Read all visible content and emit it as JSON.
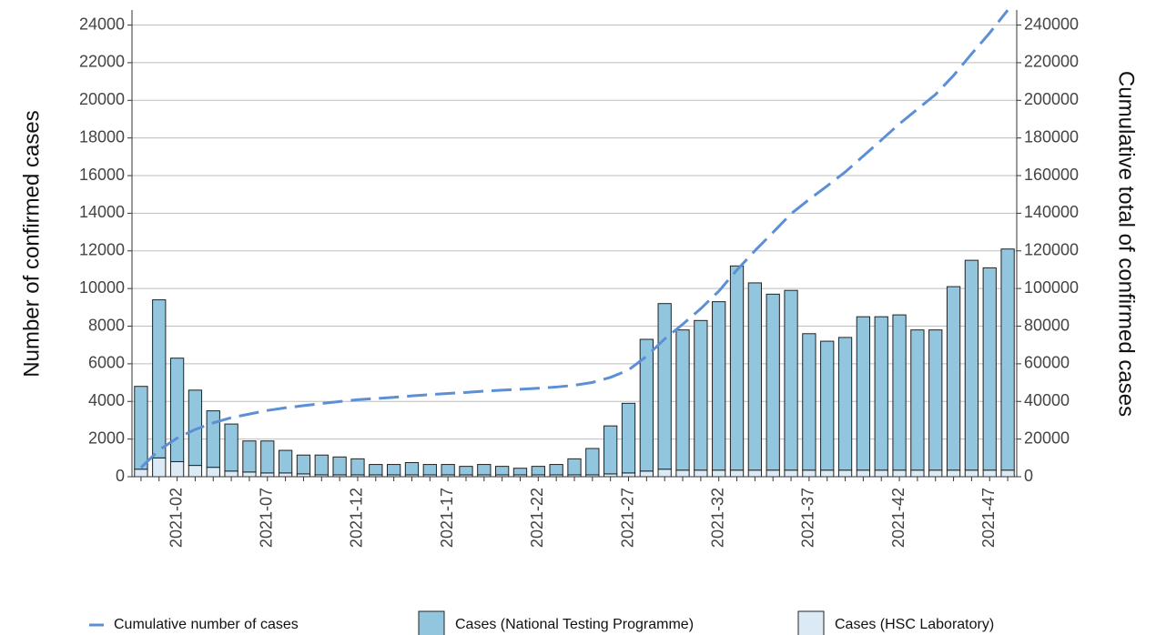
{
  "chart_data": {
    "type": "bar",
    "y_label": "Number of confirmed cases",
    "y2_label": "Cumulative total of confirmed cases",
    "categories": [
      null,
      null,
      "2021-02",
      null,
      null,
      null,
      null,
      "2021-07",
      null,
      null,
      null,
      null,
      "2021-12",
      null,
      null,
      null,
      null,
      "2021-17",
      null,
      null,
      null,
      null,
      "2021-22",
      null,
      null,
      null,
      null,
      "2021-27",
      null,
      null,
      null,
      null,
      "2021-32",
      null,
      null,
      null,
      null,
      "2021-37",
      null,
      null,
      null,
      null,
      "2021-42",
      null,
      null,
      null,
      null,
      "2021-47",
      null
    ],
    "series": [
      {
        "name": "Cumulative number of cases",
        "color": "#5b8fd6",
        "axis": "y2",
        "values": [
          4800,
          14200,
          20500,
          25100,
          28600,
          31400,
          33300,
          35200,
          36600,
          37750,
          38900,
          39950,
          40900,
          41550,
          42200,
          42950,
          43600,
          44250,
          44800,
          45450,
          46000,
          46450,
          47000,
          47650,
          48600,
          50100,
          52800,
          56700,
          64000,
          73200,
          81000,
          89300,
          98600,
          109800,
          120100,
          129800,
          139700,
          147300,
          154500,
          161900,
          170400,
          178900,
          187500,
          195300,
          203100,
          213200,
          224700,
          235800,
          247900
        ]
      },
      {
        "name": "Cases (National Testing Programme)",
        "color": "#92c5de",
        "values": [
          4400,
          8400,
          5500,
          4000,
          3000,
          2500,
          1650,
          1700,
          1200,
          1000,
          1050,
          950,
          850,
          550,
          550,
          650,
          550,
          550,
          450,
          550,
          450,
          350,
          450,
          550,
          850,
          1400,
          2550,
          3700,
          7000,
          8800,
          7450,
          7950,
          8950,
          10850,
          9950,
          9350,
          9550,
          7250,
          6850,
          7050,
          8150,
          8150,
          8250,
          7450,
          7450,
          9750,
          11150,
          10750,
          11750
        ]
      },
      {
        "name": "Cases (HSC Laboratory)",
        "color": "#dceaf5",
        "values": [
          400,
          1000,
          800,
          600,
          500,
          300,
          250,
          200,
          200,
          150,
          100,
          100,
          100,
          100,
          100,
          100,
          100,
          100,
          100,
          100,
          100,
          100,
          100,
          100,
          100,
          100,
          150,
          200,
          300,
          400,
          350,
          350,
          350,
          350,
          350,
          350,
          350,
          350,
          350,
          350,
          350,
          350,
          350,
          350,
          350,
          350,
          350,
          350,
          350
        ]
      }
    ],
    "ylim": [
      0,
      24800
    ],
    "yticks": [
      0,
      2000,
      4000,
      6000,
      8000,
      10000,
      12000,
      14000,
      16000,
      18000,
      20000,
      22000,
      24000
    ],
    "y2lim": [
      0,
      248000
    ],
    "y2ticks": [
      0,
      20000,
      40000,
      60000,
      80000,
      100000,
      120000,
      140000,
      160000,
      180000,
      200000,
      220000,
      240000
    ],
    "grid": true
  }
}
